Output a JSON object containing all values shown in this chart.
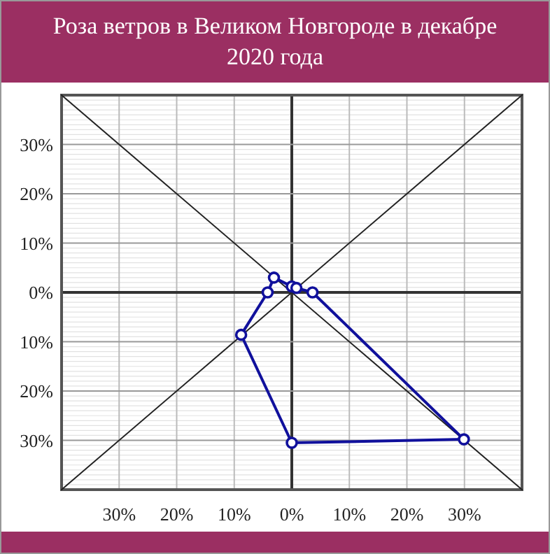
{
  "chart_data": {
    "type": "line",
    "title": "Роза ветров в Великом Новгороде в декабре 2020 года",
    "series": [
      {
        "color": "#222222",
        "marker": "none",
        "x": [
          -40,
          40
        ],
        "values": [
          40,
          -40
        ]
      },
      {
        "color": "#222222",
        "marker": "none",
        "x": [
          -40,
          40
        ],
        "values": [
          -40,
          40
        ]
      },
      {
        "color": "#10109c",
        "marker": "none",
        "x": [
          0,
          0.8,
          3.6,
          29.9
        ],
        "values": [
          1.2,
          0.9,
          0,
          -29.8
        ]
      },
      {
        "color": "#10109c",
        "marker": "none",
        "x": [
          -8.8,
          0,
          29.9
        ],
        "values": [
          -8.6,
          -30.5,
          -29.8
        ]
      },
      {
        "color": "#10109c",
        "marker": "none",
        "x": [
          -8.8,
          -4.2,
          -3.1,
          0
        ],
        "values": [
          -8.6,
          0,
          3.0,
          1.2
        ]
      },
      {
        "type": "scatter",
        "color": "#10109c",
        "x": [
          0,
          0.8,
          3.6,
          29.9,
          0,
          -8.8,
          -4.2,
          -3.1
        ],
        "values": [
          1.2,
          0.9,
          0,
          -29.8,
          -30.5,
          -8.6,
          0,
          3.0
        ]
      }
    ],
    "xlim": [
      -40,
      40
    ],
    "ylim": [
      -40,
      40
    ],
    "xticks": [
      {
        "value": -30,
        "label": "30%"
      },
      {
        "value": -20,
        "label": "20%"
      },
      {
        "value": -10,
        "label": "10%"
      },
      {
        "value": 0,
        "label": "0%"
      },
      {
        "value": 10,
        "label": "10%"
      },
      {
        "value": 20,
        "label": "20%"
      },
      {
        "value": 30,
        "label": "30%"
      }
    ],
    "yticks": [
      {
        "value": -30,
        "label": "30%"
      },
      {
        "value": -20,
        "label": "20%"
      },
      {
        "value": -10,
        "label": "10%"
      },
      {
        "value": 0,
        "label": "0%"
      },
      {
        "value": 10,
        "label": "10%"
      },
      {
        "value": 20,
        "label": "20%"
      },
      {
        "value": 30,
        "label": "30%"
      }
    ],
    "grid": true,
    "marker": "circle",
    "line_style": "solid"
  }
}
